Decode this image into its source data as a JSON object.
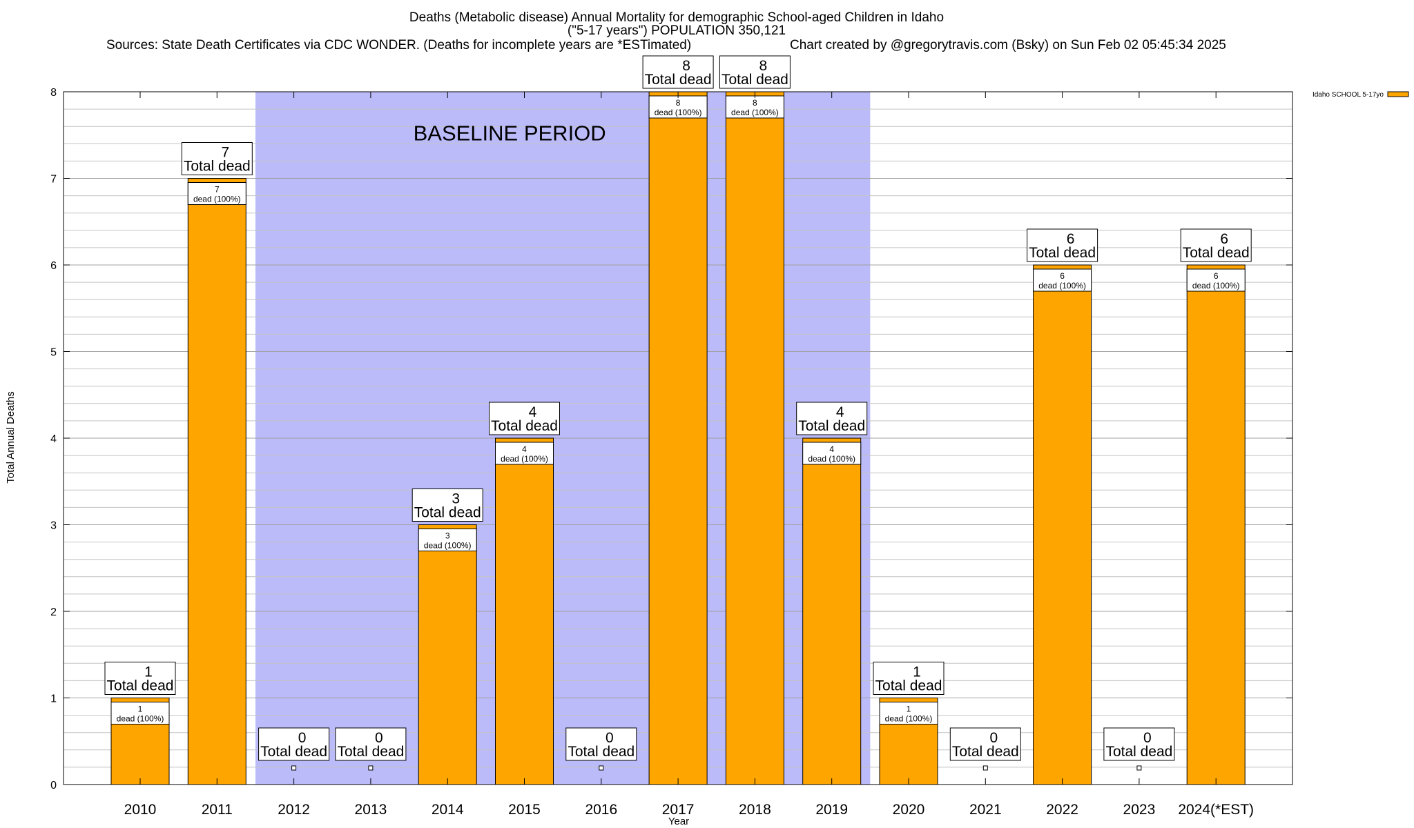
{
  "chart_data": {
    "type": "bar",
    "title": "Deaths (Metabolic disease) Annual Mortality for demographic School-aged Children in Idaho",
    "subtitle": "(\"5-17 years\") POPULATION 350,121",
    "source": "Sources: State Death Certificates via CDC WONDER. (Deaths for incomplete years are *ESTimated)",
    "credit": "Chart created by @gregorytravis.com (Bsky) on Sun Feb 02 05:45:34 2025",
    "xlabel": "Year",
    "ylabel": "Total Annual Deaths",
    "ylim": [
      0,
      8
    ],
    "yticks": [
      0,
      1,
      2,
      3,
      4,
      5,
      6,
      7,
      8
    ],
    "grid": true,
    "categories": [
      "2010",
      "2011",
      "2012",
      "2013",
      "2014",
      "2015",
      "2016",
      "2017",
      "2018",
      "2019",
      "2020",
      "2021",
      "2022",
      "2023",
      "2024(*EST)"
    ],
    "series": [
      {
        "name": "Idaho SCHOOL 5-17yo",
        "color": "#ffa500",
        "values": [
          1,
          7,
          0,
          0,
          3,
          4,
          0,
          8,
          8,
          4,
          1,
          0,
          6,
          0,
          6
        ]
      }
    ],
    "total_label": "Total dead",
    "inner_label": "dead (100%)",
    "baseline": {
      "label": "BASELINE PERIOD",
      "start": "2012",
      "end": "2019",
      "color": "#bbbbf9"
    },
    "legend_position": "top-right"
  }
}
